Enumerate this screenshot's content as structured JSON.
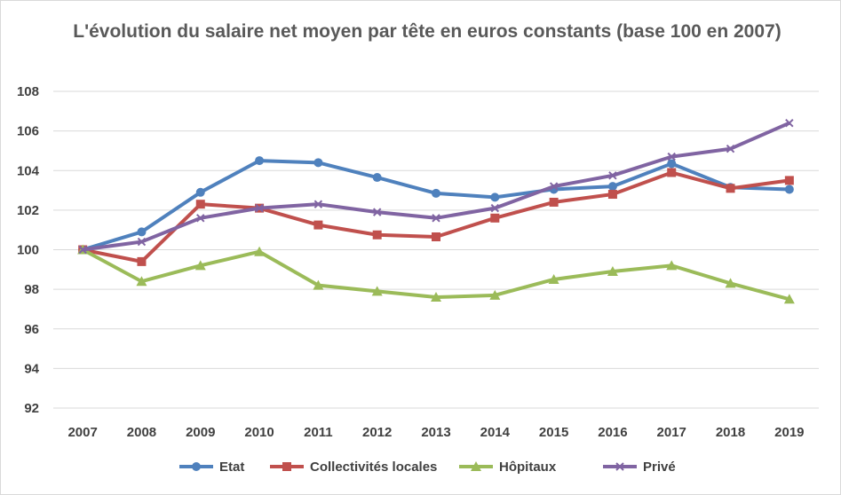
{
  "chart_data": {
    "type": "line",
    "title": "L'évolution du salaire net moyen par tête en euros constants (base 100 en 2007)",
    "xlabel": "",
    "ylabel": "",
    "categories": [
      "2007",
      "2008",
      "2009",
      "2010",
      "2011",
      "2012",
      "2013",
      "2014",
      "2015",
      "2016",
      "2017",
      "2018",
      "2019"
    ],
    "ylim": [
      92,
      108
    ],
    "yticks": [
      "92",
      "94",
      "96",
      "98",
      "100",
      "102",
      "104",
      "106",
      "108"
    ],
    "grid": true,
    "legend_position": "bottom",
    "series": [
      {
        "name": "Etat",
        "color": "#4f81bd",
        "marker": "circle",
        "values": [
          100.0,
          100.9,
          102.9,
          104.5,
          104.4,
          103.65,
          102.85,
          102.65,
          103.05,
          103.2,
          104.35,
          103.15,
          103.05
        ]
      },
      {
        "name": "Collectivités locales",
        "color": "#c0504d",
        "marker": "square",
        "values": [
          100.0,
          99.4,
          102.3,
          102.1,
          101.25,
          100.75,
          100.65,
          101.6,
          102.4,
          102.8,
          103.9,
          103.1,
          103.5
        ]
      },
      {
        "name": "Hôpitaux",
        "color": "#9bbb59",
        "marker": "triangle",
        "values": [
          100.0,
          98.4,
          99.2,
          99.9,
          98.2,
          97.9,
          97.6,
          97.7,
          98.5,
          98.9,
          99.2,
          98.3,
          97.5
        ]
      },
      {
        "name": "Privé",
        "color": "#8064a2",
        "marker": "x",
        "values": [
          100.0,
          100.4,
          101.6,
          102.1,
          102.3,
          101.9,
          101.6,
          102.1,
          103.2,
          103.75,
          104.7,
          105.1,
          106.4
        ]
      }
    ]
  }
}
